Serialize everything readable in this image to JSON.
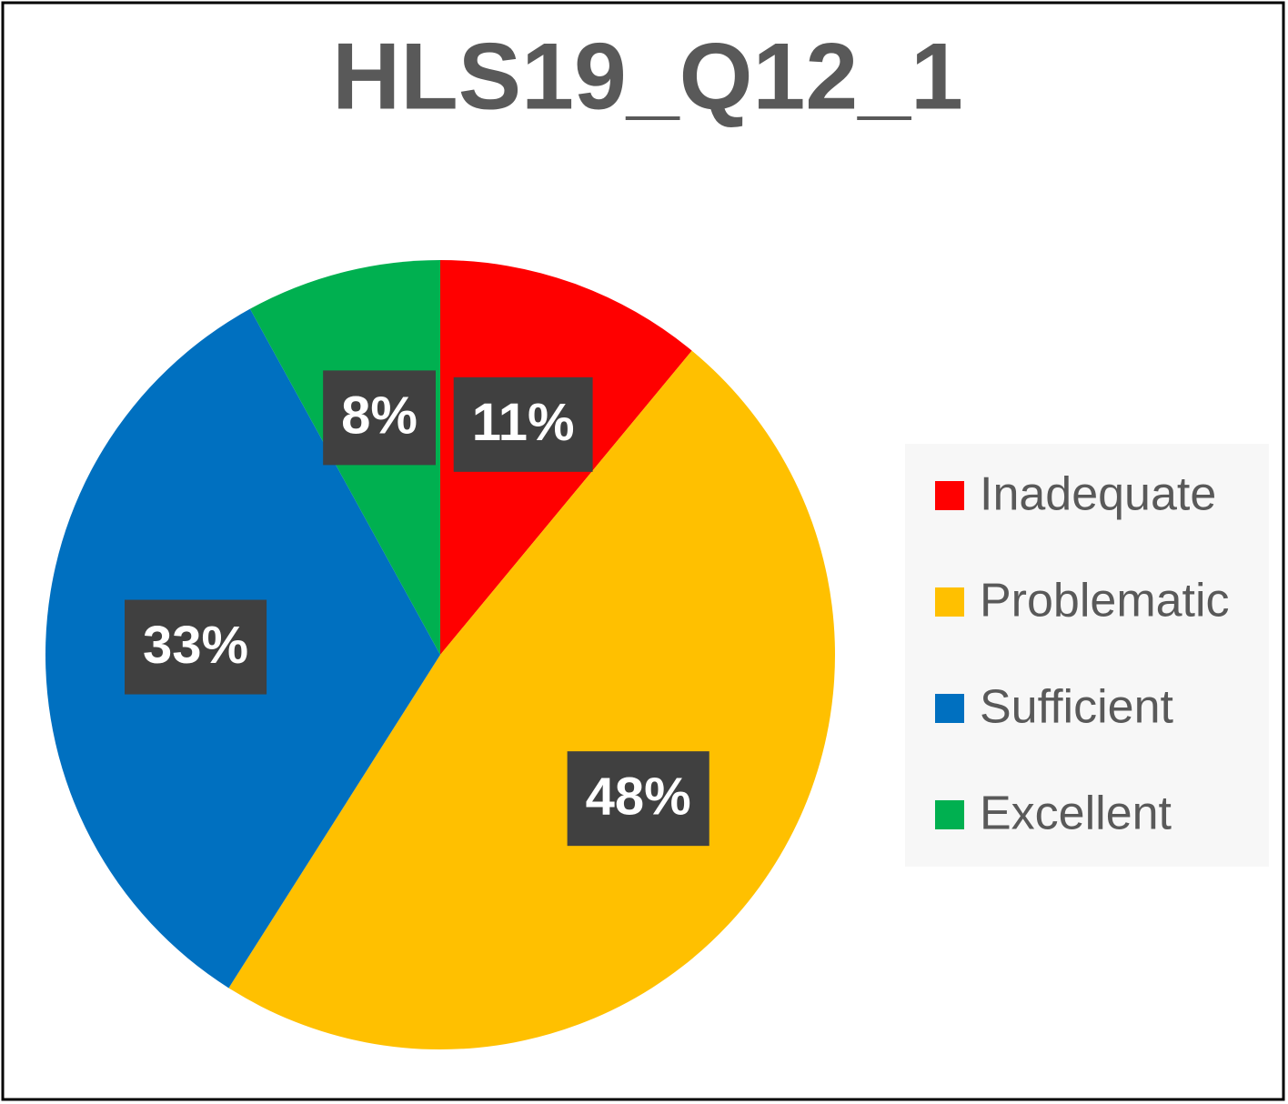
{
  "chart_data": {
    "type": "pie",
    "title": "HLS19_Q12_1",
    "categories": [
      "Inadequate",
      "Problematic",
      "Sufficient",
      "Excellent"
    ],
    "values": [
      11,
      48,
      33,
      8
    ],
    "value_labels": [
      "11%",
      "48%",
      "33%",
      "8%"
    ],
    "colors": [
      "#ff0000",
      "#ffc000",
      "#0070c0",
      "#00b050"
    ],
    "legend": "right"
  }
}
